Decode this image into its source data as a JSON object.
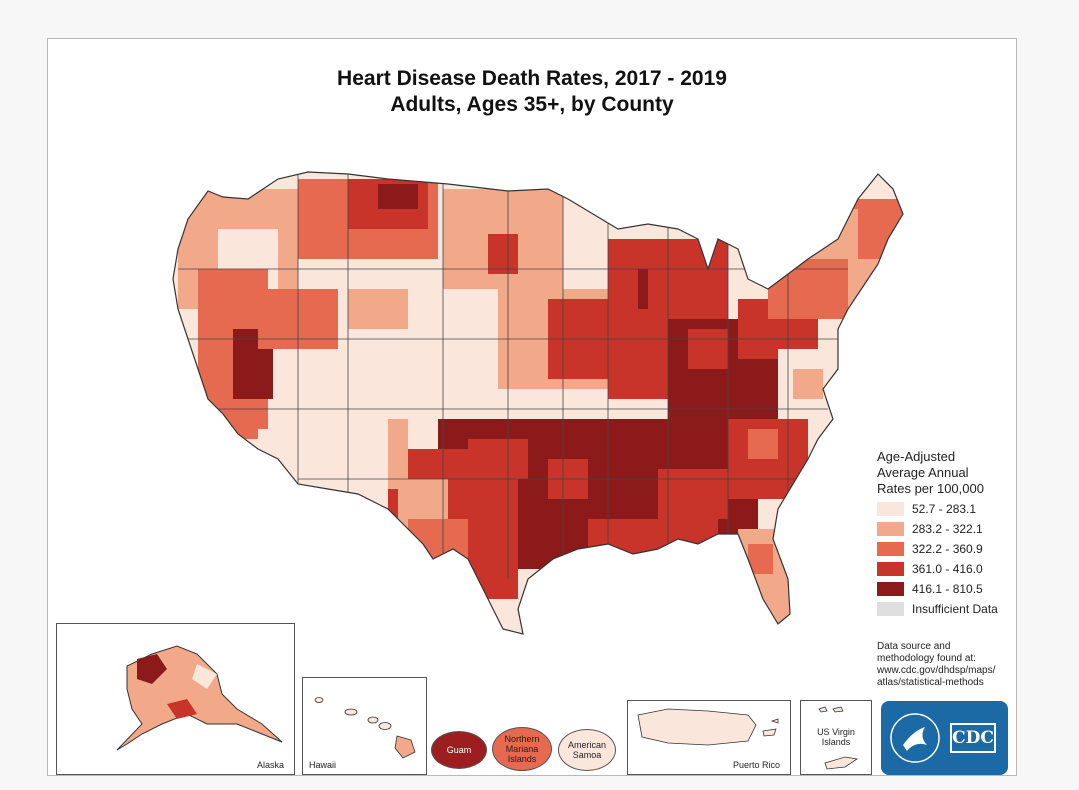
{
  "title": {
    "line1": "Heart Disease Death Rates, 2017 - 2019",
    "line2": "Adults, Ages 35+, by County"
  },
  "legend": {
    "title": "Age-Adjusted\nAverage Annual\nRates per 100,000",
    "classes": [
      {
        "label": "52.7 - 283.1",
        "color": "#fbe6dc"
      },
      {
        "label": "283.2 - 322.1",
        "color": "#f2a98a"
      },
      {
        "label": "322.2 - 360.9",
        "color": "#e56a4f"
      },
      {
        "label": "361.0 - 416.0",
        "color": "#c8342a"
      },
      {
        "label": "416.1 - 810.5",
        "color": "#8c1a1a"
      },
      {
        "label": "Insufficient Data",
        "color": "#dedede"
      }
    ]
  },
  "source_note": "Data source and\nmethodology found at:\nwww.cdc.gov/dhdsp/maps/\natlas/statistical-methods",
  "insets": {
    "alaska": "Alaska",
    "hawaii": "Hawaii",
    "puerto_rico": "Puerto Rico",
    "usvi": "US Virgin\nIslands"
  },
  "territories": [
    {
      "label": "Guam",
      "color": "#9c1e1e",
      "text_color": "#ffffff"
    },
    {
      "label": "Northern\nMariana\nIslands",
      "color": "#e56a4f",
      "text_color": "#222222"
    },
    {
      "label": "American\nSamoa",
      "color": "#fbe6dc",
      "text_color": "#222222"
    }
  ],
  "logo": {
    "text": "CDC",
    "color": "#1b6aa5"
  }
}
